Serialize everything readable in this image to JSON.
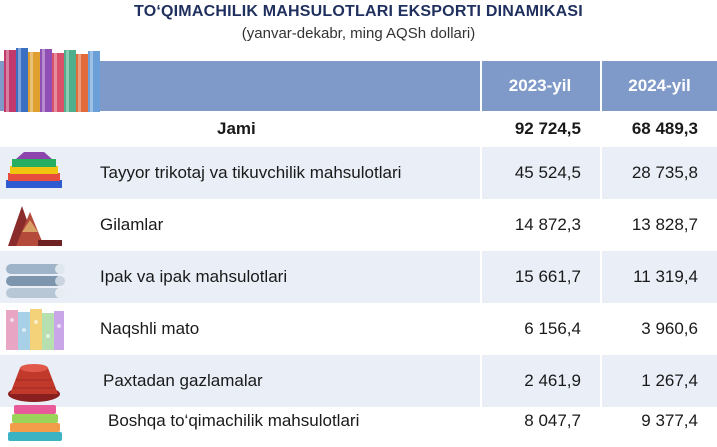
{
  "title": "TO‘QIMACHILIK MAHSULOTLARI EKSPORTI DINAMIKASI",
  "subtitle": "(yanvar-dekabr, ming AQSh dollari)",
  "columns": [
    "2023-yil",
    "2024-yil"
  ],
  "total": {
    "label": "Jami",
    "v2023": "92 724,5",
    "v2024": "68 489,3"
  },
  "rows": [
    {
      "label": "Tayyor trikotaj va tikuvchilik mahsulotlari",
      "v2023": "45 524,5",
      "v2024": "28 735,8",
      "icon": "folded-clothes-icon"
    },
    {
      "label": "Gilamlar",
      "v2023": "14 872,3",
      "v2024": "13 828,7",
      "icon": "carpet-icon"
    },
    {
      "label": "Ipak va ipak mahsulotlari",
      "v2023": "15 661,7",
      "v2024": "11 319,4",
      "icon": "silk-rolls-icon"
    },
    {
      "label": "Naqshli mato",
      "v2023": "6 156,4",
      "v2024": "3 960,6",
      "icon": "patterned-fabric-icon"
    },
    {
      "label": "Paxtadan gazlamalar",
      "v2023": "2 461,9",
      "v2024": "1 267,4",
      "icon": "yarn-spool-icon"
    },
    {
      "label": "Boshqa to‘qimachilik mahsulotlari",
      "v2023": "8 047,7",
      "v2024": "9 377,4",
      "icon": "towels-icon"
    }
  ],
  "colors": {
    "header": "#7f9ac9",
    "stripe": "#e9eef7",
    "title": "#1f2f5e"
  }
}
